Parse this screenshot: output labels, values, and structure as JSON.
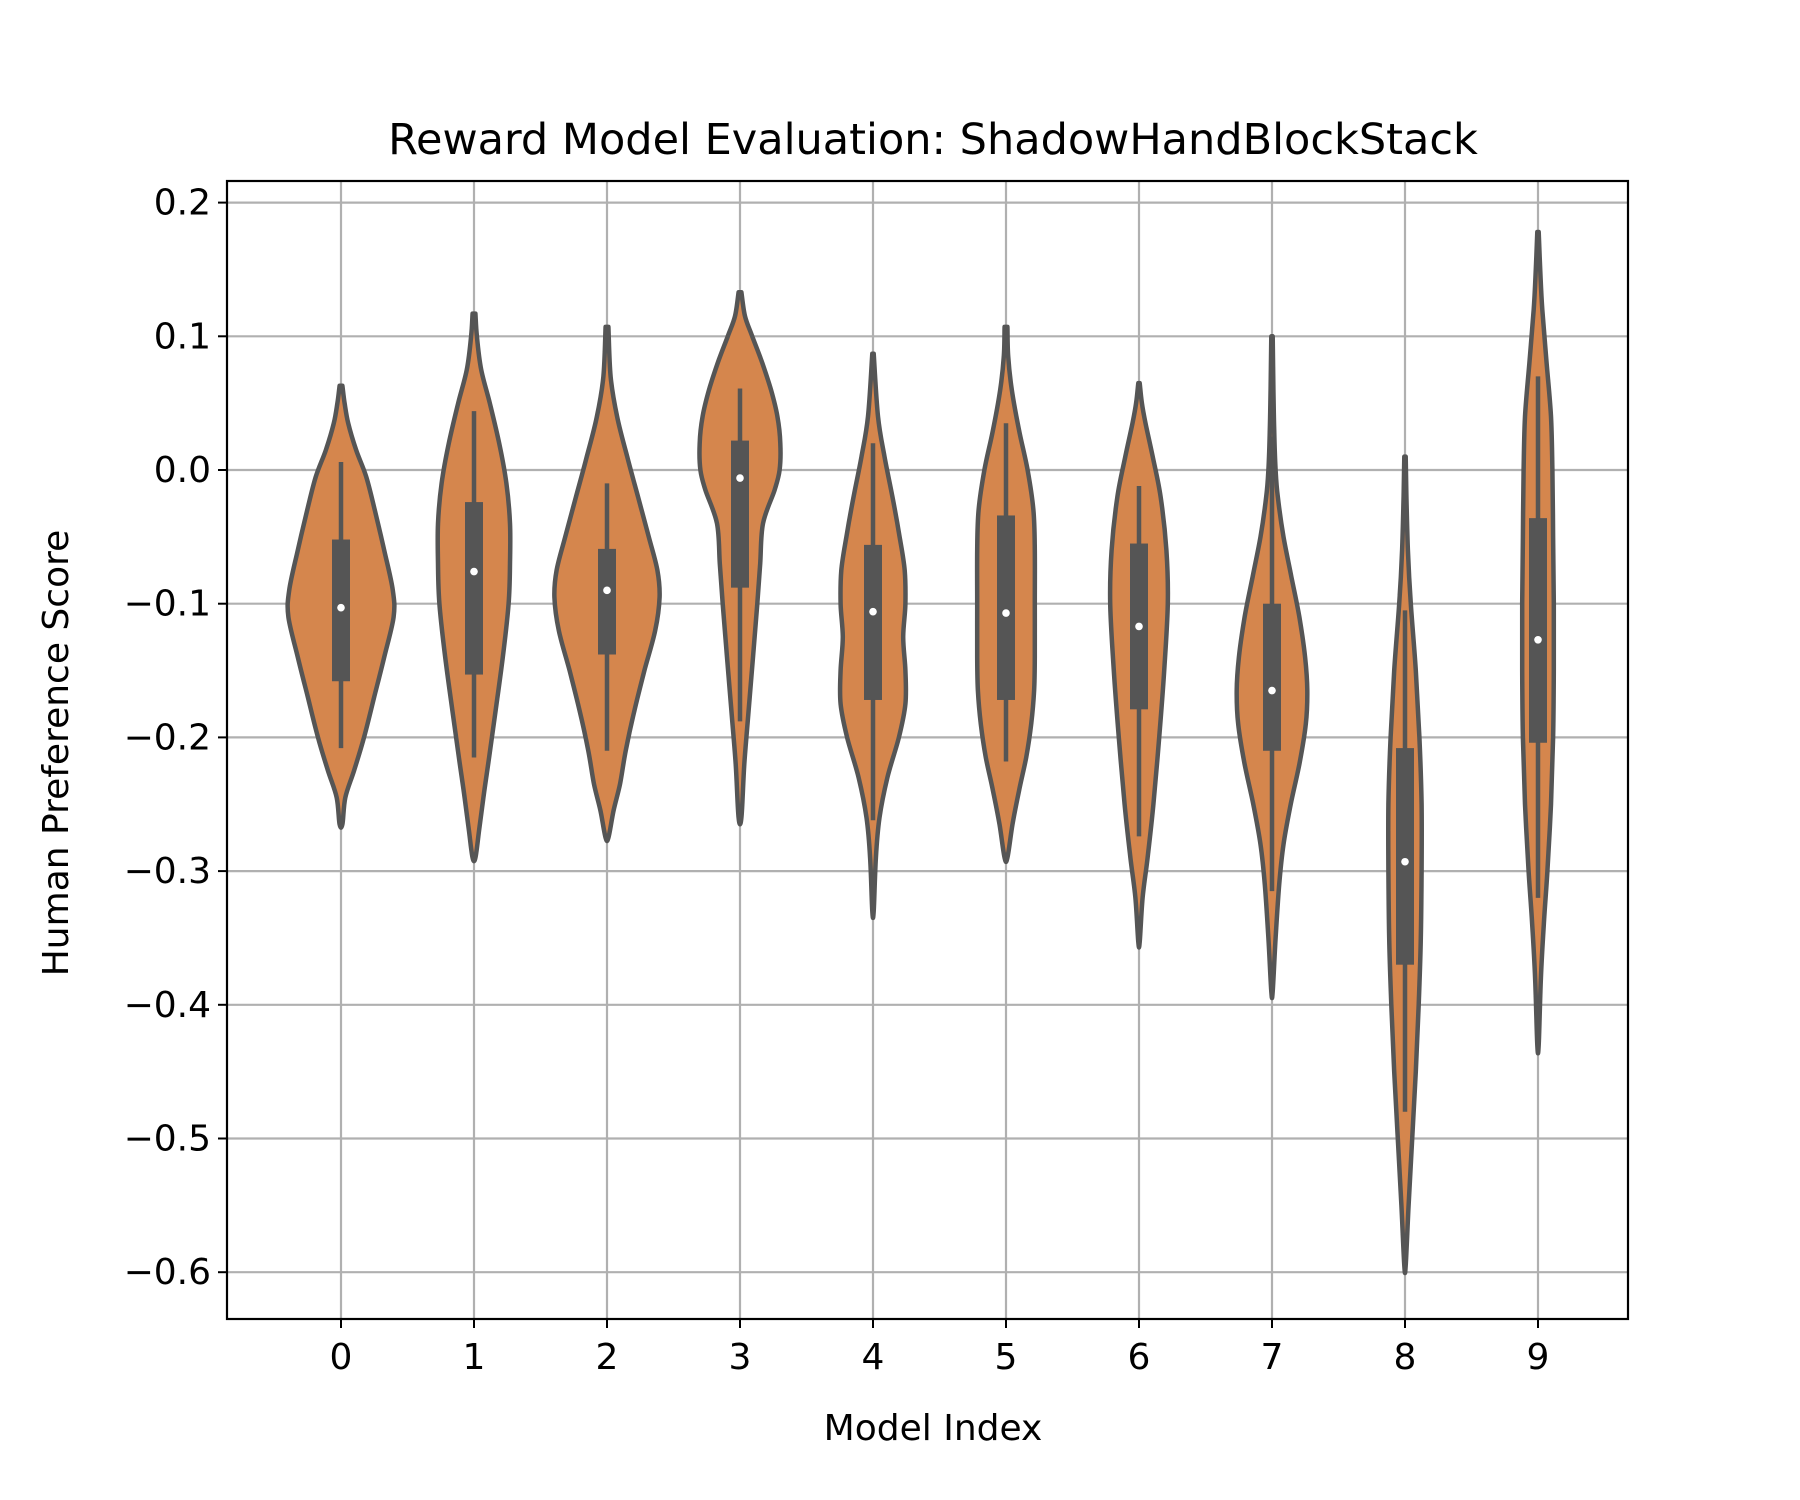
{
  "chart_data": {
    "type": "violin",
    "title": "Reward Model Evaluation: ShadowHandBlockStack",
    "xlabel": "Model Index",
    "ylabel": "Human Preference Score",
    "categories": [
      "0",
      "1",
      "2",
      "3",
      "4",
      "5",
      "6",
      "7",
      "8",
      "9"
    ],
    "ylim": [
      -0.635,
      0.215
    ],
    "yticks": [
      0.2,
      0.1,
      0.0,
      -0.1,
      -0.2,
      -0.3,
      -0.4,
      -0.5,
      -0.6
    ],
    "ytick_labels": [
      "0.2",
      "0.1",
      "0.0",
      "−0.1",
      "−0.2",
      "−0.3",
      "−0.4",
      "−0.5",
      "−0.6"
    ],
    "grid": true,
    "fill_color": "#d5864d",
    "edge_color": "#555555",
    "box_color": "#555555",
    "median_color": "#ffffff",
    "violins": [
      {
        "min": -0.265,
        "max": 0.063,
        "whisker_low": -0.208,
        "whisker_high": 0.006,
        "q1": -0.158,
        "median": -0.103,
        "q3": -0.052,
        "profile": [
          [
            -0.265,
            0.2
          ],
          [
            -0.245,
            0.6
          ],
          [
            -0.225,
            1.8
          ],
          [
            -0.2,
            3.2
          ],
          [
            -0.17,
            4.6
          ],
          [
            -0.14,
            6.0
          ],
          [
            -0.11,
            7.3
          ],
          [
            -0.09,
            7.2
          ],
          [
            -0.06,
            6.0
          ],
          [
            -0.03,
            4.7
          ],
          [
            -0.005,
            3.5
          ],
          [
            0.015,
            2.1
          ],
          [
            0.035,
            1.0
          ],
          [
            0.05,
            0.5
          ],
          [
            0.063,
            0.2
          ]
        ]
      },
      {
        "min": -0.29,
        "max": 0.117,
        "whisker_low": -0.215,
        "whisker_high": 0.044,
        "q1": -0.153,
        "median": -0.076,
        "q3": -0.024,
        "profile": [
          [
            -0.29,
            0.2
          ],
          [
            -0.27,
            0.7
          ],
          [
            -0.245,
            1.3
          ],
          [
            -0.215,
            2.1
          ],
          [
            -0.18,
            3.0
          ],
          [
            -0.14,
            4.0
          ],
          [
            -0.1,
            4.8
          ],
          [
            -0.07,
            5.0
          ],
          [
            -0.04,
            5.0
          ],
          [
            -0.01,
            4.5
          ],
          [
            0.02,
            3.5
          ],
          [
            0.05,
            2.2
          ],
          [
            0.075,
            1.0
          ],
          [
            0.1,
            0.4
          ],
          [
            0.117,
            0.2
          ]
        ]
      },
      {
        "min": -0.275,
        "max": 0.107,
        "whisker_low": -0.21,
        "whisker_high": -0.01,
        "q1": -0.138,
        "median": -0.09,
        "q3": -0.059,
        "profile": [
          [
            -0.275,
            0.2
          ],
          [
            -0.255,
            0.9
          ],
          [
            -0.235,
            1.8
          ],
          [
            -0.21,
            2.6
          ],
          [
            -0.18,
            3.8
          ],
          [
            -0.15,
            5.2
          ],
          [
            -0.12,
            6.7
          ],
          [
            -0.095,
            7.3
          ],
          [
            -0.075,
            7.0
          ],
          [
            -0.05,
            5.8
          ],
          [
            -0.02,
            4.3
          ],
          [
            0.01,
            2.8
          ],
          [
            0.04,
            1.4
          ],
          [
            0.07,
            0.5
          ],
          [
            0.107,
            0.2
          ]
        ]
      },
      {
        "min": -0.26,
        "max": 0.133,
        "whisker_low": -0.188,
        "whisker_high": 0.061,
        "q1": -0.088,
        "median": -0.006,
        "q3": 0.022,
        "profile": [
          [
            -0.26,
            0.2
          ],
          [
            -0.22,
            0.6
          ],
          [
            -0.18,
            1.2
          ],
          [
            -0.14,
            1.8
          ],
          [
            -0.1,
            2.4
          ],
          [
            -0.07,
            2.8
          ],
          [
            -0.04,
            3.2
          ],
          [
            -0.015,
            4.8
          ],
          [
            0.0,
            5.5
          ],
          [
            0.02,
            5.6
          ],
          [
            0.04,
            5.2
          ],
          [
            0.06,
            4.3
          ],
          [
            0.08,
            3.1
          ],
          [
            0.1,
            1.7
          ],
          [
            0.115,
            0.7
          ],
          [
            0.133,
            0.2
          ]
        ]
      },
      {
        "min": -0.33,
        "max": 0.087,
        "whisker_low": -0.262,
        "whisker_high": 0.02,
        "q1": -0.172,
        "median": -0.106,
        "q3": -0.056,
        "profile": [
          [
            -0.33,
            0.1
          ],
          [
            -0.29,
            0.4
          ],
          [
            -0.26,
            0.9
          ],
          [
            -0.23,
            2.0
          ],
          [
            -0.2,
            3.6
          ],
          [
            -0.175,
            4.5
          ],
          [
            -0.15,
            4.5
          ],
          [
            -0.125,
            4.2
          ],
          [
            -0.1,
            4.5
          ],
          [
            -0.075,
            4.4
          ],
          [
            -0.05,
            3.7
          ],
          [
            -0.02,
            2.7
          ],
          [
            0.01,
            1.6
          ],
          [
            0.04,
            0.7
          ],
          [
            0.087,
            0.1
          ]
        ]
      },
      {
        "min": -0.29,
        "max": 0.107,
        "whisker_low": -0.218,
        "whisker_high": 0.035,
        "q1": -0.172,
        "median": -0.107,
        "q3": -0.034,
        "profile": [
          [
            -0.29,
            0.2
          ],
          [
            -0.265,
            0.9
          ],
          [
            -0.24,
            1.8
          ],
          [
            -0.215,
            2.8
          ],
          [
            -0.19,
            3.5
          ],
          [
            -0.165,
            3.9
          ],
          [
            -0.14,
            4.0
          ],
          [
            -0.1,
            4.0
          ],
          [
            -0.06,
            4.0
          ],
          [
            -0.03,
            3.8
          ],
          [
            0.0,
            3.0
          ],
          [
            0.03,
            1.8
          ],
          [
            0.06,
            0.8
          ],
          [
            0.085,
            0.3
          ],
          [
            0.107,
            0.2
          ]
        ]
      },
      {
        "min": -0.353,
        "max": 0.065,
        "whisker_low": -0.274,
        "whisker_high": -0.012,
        "q1": -0.179,
        "median": -0.117,
        "q3": -0.055,
        "profile": [
          [
            -0.353,
            0.1
          ],
          [
            -0.32,
            0.5
          ],
          [
            -0.29,
            1.2
          ],
          [
            -0.25,
            2.0
          ],
          [
            -0.2,
            2.8
          ],
          [
            -0.15,
            3.5
          ],
          [
            -0.1,
            4.0
          ],
          [
            -0.06,
            3.8
          ],
          [
            -0.02,
            3.0
          ],
          [
            0.01,
            1.9
          ],
          [
            0.035,
            0.9
          ],
          [
            0.05,
            0.4
          ],
          [
            0.065,
            0.1
          ]
        ]
      },
      {
        "min": -0.39,
        "max": 0.1,
        "whisker_low": -0.315,
        "whisker_high": 0.025,
        "q1": -0.21,
        "median": -0.165,
        "q3": -0.1,
        "profile": [
          [
            -0.39,
            0.1
          ],
          [
            -0.35,
            0.5
          ],
          [
            -0.31,
            1.0
          ],
          [
            -0.28,
            1.6
          ],
          [
            -0.25,
            2.6
          ],
          [
            -0.22,
            3.8
          ],
          [
            -0.19,
            4.7
          ],
          [
            -0.165,
            4.9
          ],
          [
            -0.14,
            4.6
          ],
          [
            -0.11,
            3.8
          ],
          [
            -0.08,
            2.7
          ],
          [
            -0.05,
            1.6
          ],
          [
            -0.02,
            0.8
          ],
          [
            0.0,
            0.5
          ],
          [
            0.03,
            0.3
          ],
          [
            0.06,
            0.2
          ],
          [
            0.1,
            0.1
          ]
        ]
      },
      {
        "min": -0.595,
        "max": 0.01,
        "whisker_low": -0.48,
        "whisker_high": -0.105,
        "q1": -0.37,
        "median": -0.293,
        "q3": -0.208,
        "profile": [
          [
            -0.595,
            0.1
          ],
          [
            -0.55,
            0.5
          ],
          [
            -0.5,
            1.0
          ],
          [
            -0.45,
            1.5
          ],
          [
            -0.4,
            1.9
          ],
          [
            -0.35,
            2.2
          ],
          [
            -0.3,
            2.3
          ],
          [
            -0.25,
            2.3
          ],
          [
            -0.2,
            2.0
          ],
          [
            -0.15,
            1.5
          ],
          [
            -0.1,
            0.8
          ],
          [
            -0.06,
            0.4
          ],
          [
            -0.02,
            0.2
          ],
          [
            0.01,
            0.1
          ]
        ]
      },
      {
        "min": -0.43,
        "max": 0.178,
        "whisker_low": -0.32,
        "whisker_high": 0.07,
        "q1": -0.204,
        "median": -0.127,
        "q3": -0.036,
        "profile": [
          [
            -0.43,
            0.1
          ],
          [
            -0.38,
            0.4
          ],
          [
            -0.34,
            0.8
          ],
          [
            -0.3,
            1.3
          ],
          [
            -0.25,
            1.8
          ],
          [
            -0.2,
            2.1
          ],
          [
            -0.15,
            2.2
          ],
          [
            -0.1,
            2.2
          ],
          [
            -0.05,
            2.1
          ],
          [
            0.0,
            2.0
          ],
          [
            0.04,
            1.8
          ],
          [
            0.08,
            1.2
          ],
          [
            0.12,
            0.6
          ],
          [
            0.15,
            0.3
          ],
          [
            0.178,
            0.1
          ]
        ]
      }
    ]
  }
}
